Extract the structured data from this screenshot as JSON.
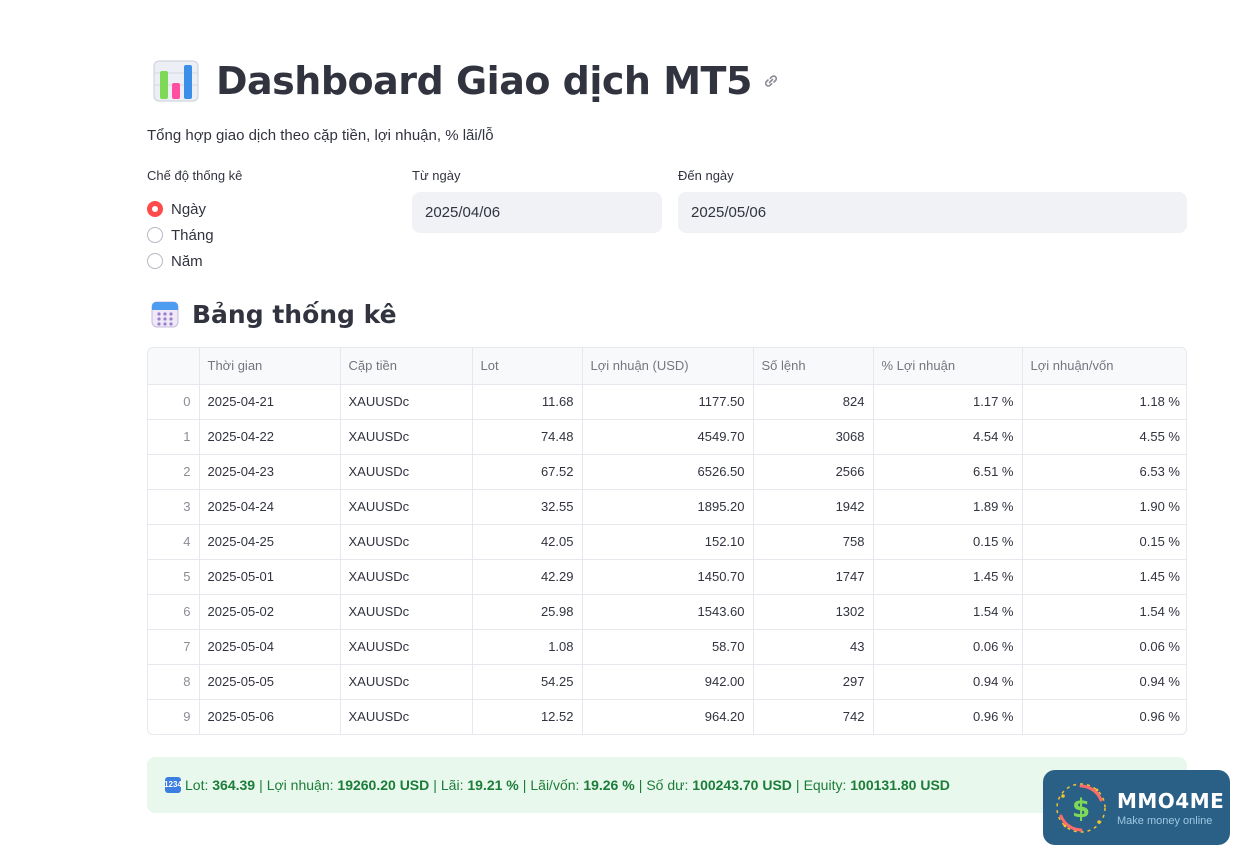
{
  "header": {
    "title": "Dashboard Giao dịch MT5",
    "subtitle": "Tổng hợp giao dịch theo cặp tiền, lợi nhuận, % lãi/lỗ"
  },
  "filters": {
    "mode_label": "Chế độ thống kê",
    "mode_options": [
      "Ngày",
      "Tháng",
      "Năm"
    ],
    "mode_selected": "Ngày",
    "from_label": "Từ ngày",
    "from_value": "2025/04/06",
    "to_label": "Đến ngày",
    "to_value": "2025/05/06"
  },
  "section": {
    "title": "Bảng thống kê"
  },
  "table": {
    "columns": [
      "",
      "Thời gian",
      "Cặp tiền",
      "Lot",
      "Lợi nhuận (USD)",
      "Số lệnh",
      "% Lợi nhuận",
      "Lợi nhuận/vốn"
    ],
    "rows": [
      [
        "0",
        "2025-04-21",
        "XAUUSDc",
        "11.68",
        "1177.50",
        "824",
        "1.17 %",
        "1.18 %"
      ],
      [
        "1",
        "2025-04-22",
        "XAUUSDc",
        "74.48",
        "4549.70",
        "3068",
        "4.54 %",
        "4.55 %"
      ],
      [
        "2",
        "2025-04-23",
        "XAUUSDc",
        "67.52",
        "6526.50",
        "2566",
        "6.51 %",
        "6.53 %"
      ],
      [
        "3",
        "2025-04-24",
        "XAUUSDc",
        "32.55",
        "1895.20",
        "1942",
        "1.89 %",
        "1.90 %"
      ],
      [
        "4",
        "2025-04-25",
        "XAUUSDc",
        "42.05",
        "152.10",
        "758",
        "0.15 %",
        "0.15 %"
      ],
      [
        "5",
        "2025-05-01",
        "XAUUSDc",
        "42.29",
        "1450.70",
        "1747",
        "1.45 %",
        "1.45 %"
      ],
      [
        "6",
        "2025-05-02",
        "XAUUSDc",
        "25.98",
        "1543.60",
        "1302",
        "1.54 %",
        "1.54 %"
      ],
      [
        "7",
        "2025-05-04",
        "XAUUSDc",
        "1.08",
        "58.70",
        "43",
        "0.06 %",
        "0.06 %"
      ],
      [
        "8",
        "2025-05-05",
        "XAUUSDc",
        "54.25",
        "942.00",
        "297",
        "0.94 %",
        "0.94 %"
      ],
      [
        "9",
        "2025-05-06",
        "XAUUSDc",
        "12.52",
        "964.20",
        "742",
        "0.96 %",
        "0.96 %"
      ]
    ]
  },
  "summary": {
    "badge": "1234",
    "lot_label": "Lot:",
    "lot_value": "364.39",
    "profit_label": "Lợi nhuận:",
    "profit_value": "19260.20 USD",
    "gain_label": "Lãi:",
    "gain_value": "19.21 %",
    "gain_capital_label": "Lãi/vốn:",
    "gain_capital_value": "19.26 %",
    "balance_label": "Số dư:",
    "balance_value": "100243.70 USD",
    "equity_label": "Equity:",
    "equity_value": "100131.80 USD",
    "separator": "|"
  },
  "watermark": {
    "name": "MMO4ME",
    "tagline": "Make money online",
    "icon": "dollar-icon"
  },
  "colors": {
    "accent": "#ff4b4b",
    "summary_bg": "#e8f8ec",
    "summary_text": "#1c7c39",
    "logo_bg": "#2a5f86"
  }
}
